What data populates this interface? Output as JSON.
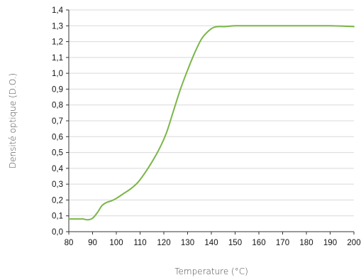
{
  "chart_data": {
    "type": "line",
    "title": "",
    "xlabel": "Temperature (°C)",
    "ylabel": "Densité optique (D.O.)",
    "xlim": [
      80,
      200
    ],
    "ylim": [
      0,
      1.4
    ],
    "grid": true,
    "legend": "none",
    "x_ticks": [
      "80",
      "90",
      "100",
      "110",
      "120",
      "130",
      "140",
      "150",
      "160",
      "170",
      "180",
      "190",
      "200"
    ],
    "y_ticks": [
      "0,0",
      "0,1",
      "0,2",
      "0,3",
      "0,4",
      "0,5",
      "0,6",
      "0,7",
      "0,8",
      "0,9",
      "1,0",
      "1,1",
      "1,2",
      "1,3",
      "1,4"
    ],
    "series": [
      {
        "color": "#7ab648",
        "x": [
          80,
          83,
          86,
          88,
          90,
          92,
          94,
          96,
          98,
          100,
          103,
          106,
          109,
          112,
          115,
          118,
          121,
          124,
          127,
          130,
          133,
          136,
          139,
          141,
          143,
          146,
          150,
          160,
          170,
          180,
          190,
          200
        ],
        "y": [
          0.08,
          0.08,
          0.08,
          0.075,
          0.085,
          0.12,
          0.165,
          0.185,
          0.195,
          0.21,
          0.24,
          0.27,
          0.31,
          0.37,
          0.44,
          0.52,
          0.62,
          0.76,
          0.9,
          1.02,
          1.13,
          1.22,
          1.27,
          1.29,
          1.295,
          1.295,
          1.3,
          1.3,
          1.3,
          1.3,
          1.3,
          1.295
        ]
      }
    ]
  }
}
